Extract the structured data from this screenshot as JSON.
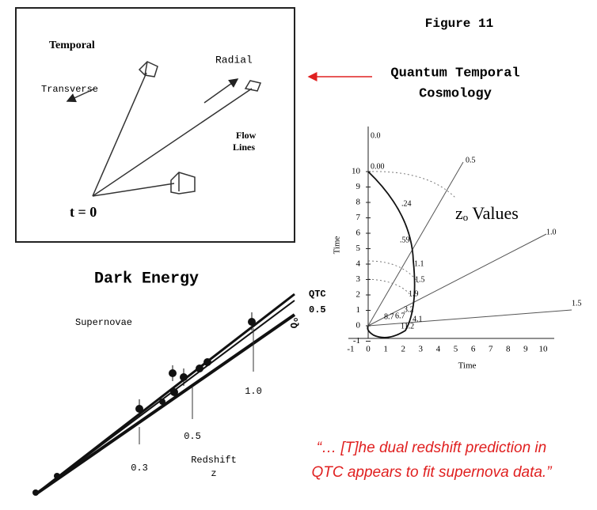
{
  "figure_label": "Figure 11",
  "title": [
    "Quantum Temporal",
    "Cosmology"
  ],
  "temporal_diagram": {
    "title": "Temporal",
    "radial": "Radial",
    "transverse": "Transverse",
    "flow_lines": [
      "Flow",
      "Lines"
    ],
    "origin": "t = 0"
  },
  "z_plot": {
    "title": "zₒ Values",
    "x_label": "Time",
    "y_label": "Time",
    "x_ticks": [
      "-1",
      "0",
      "1",
      "2",
      "3",
      "4",
      "5",
      "6",
      "7",
      "8",
      "9",
      "10"
    ],
    "y_ticks": [
      "-1",
      "0",
      "1",
      "2",
      "3",
      "4",
      "5",
      "6",
      "7",
      "8",
      "9",
      "10"
    ],
    "ray_labels": [
      "0.0",
      "0.5",
      "1.0",
      "1.5"
    ],
    "curve_labels": [
      "0.00",
      ".24",
      ".59",
      "1.1",
      "1.5",
      "1.9",
      "3.2",
      "4.1",
      "8.7",
      "6.7",
      "11.2"
    ]
  },
  "dark_energy": {
    "title": "Dark Energy",
    "subtitle": "Supernovae",
    "line_labels": [
      "QTC",
      "0.5"
    ],
    "y_label": "Qₒ",
    "x_label": [
      "Redshift",
      "z"
    ],
    "tick_labels": [
      "0.3",
      "0.5",
      "1.0"
    ]
  },
  "quote": [
    "“… [T]he dual redshift prediction in",
    "QTC appears to fit supernova data.”"
  ]
}
